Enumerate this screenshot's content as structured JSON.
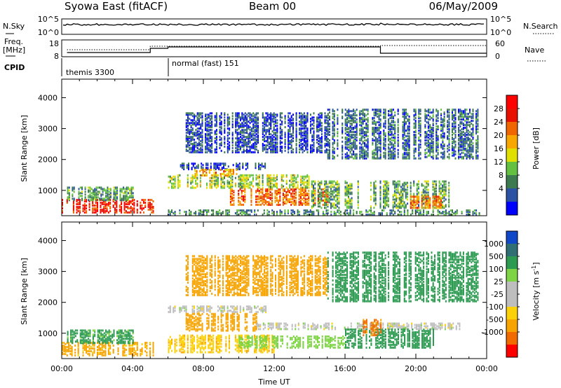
{
  "header": {
    "station": "Syowa East (fitACF)",
    "beam": "Beam 00",
    "date": "06/May/2009"
  },
  "noise_panel": {
    "left_label": "N.Sky",
    "right_label": "N.Search",
    "tick_top": "10^5",
    "tick_bottom": "10^0"
  },
  "freq_panel": {
    "left_label_1": "Freq.",
    "left_label_2": "[MHz]",
    "left_tick_top": "18",
    "left_tick_bottom": "8",
    "right_label": "Nave",
    "right_tick_top": "60",
    "right_tick_bottom": "0"
  },
  "cpid_panel": {
    "label": "CPID",
    "modes": [
      {
        "name": "themis 3300",
        "start_hour": 0,
        "end_hour": 6
      },
      {
        "name": "normal (fast) 151",
        "start_hour": 6,
        "end_hour": 24
      }
    ]
  },
  "colors": {
    "power_scale": [
      "#0000ff",
      "#2c53a3",
      "#3d7a50",
      "#63c040",
      "#e0e000",
      "#f7a700",
      "#f06600",
      "#e81000",
      "#ff0000"
    ],
    "velocity_scale": [
      "#ff0000",
      "#f26b00",
      "#f7a400",
      "#fbd20a",
      "#bebebe",
      "#bebebe",
      "#7ed444",
      "#2c9a50",
      "#306f74",
      "#1048c8"
    ]
  },
  "chart_data": [
    {
      "type": "heatmap",
      "title": "Power",
      "xlabel": "",
      "ylabel": "Slant Range [km]",
      "xlim_hours": [
        0,
        24
      ],
      "ylim": [
        180,
        4600
      ],
      "x_ticks": [
        "00:00",
        "04:00",
        "08:00",
        "12:00",
        "16:00",
        "20:00",
        "00:00"
      ],
      "y_ticks": [
        "1000",
        "2000",
        "3000",
        "4000"
      ],
      "colorbar": {
        "label": "Power [dB]",
        "range": [
          0,
          32
        ],
        "ticks": [
          "28",
          "24",
          "20",
          "16",
          "12",
          "8",
          "4"
        ]
      },
      "echo_regions": [
        {
          "t0": 0.0,
          "t1": 5.3,
          "r0": 250,
          "r1": 700,
          "value": 27
        },
        {
          "t0": 0.3,
          "t1": 4.0,
          "r0": 650,
          "r1": 1100,
          "value": 10
        },
        {
          "t0": 6.0,
          "t1": 14.0,
          "r0": 1050,
          "r1": 1500,
          "value": 14
        },
        {
          "t0": 6.5,
          "t1": 11.5,
          "r0": 1650,
          "r1": 1850,
          "value": 5
        },
        {
          "t0": 7.5,
          "t1": 10.0,
          "r0": 1450,
          "r1": 1650,
          "value": 20
        },
        {
          "t0": 9.5,
          "t1": 15.0,
          "r0": 500,
          "r1": 1000,
          "value": 23
        },
        {
          "t0": 14.0,
          "t1": 22.0,
          "r0": 400,
          "r1": 1300,
          "value": 11
        },
        {
          "t0": 19.5,
          "t1": 21.5,
          "r0": 400,
          "r1": 800,
          "value": 22
        },
        {
          "t0": 7.0,
          "t1": 15.0,
          "r0": 2200,
          "r1": 3500,
          "value": 5
        },
        {
          "t0": 15.0,
          "t1": 23.5,
          "r0": 2000,
          "r1": 3600,
          "value": 7
        },
        {
          "t0": 6.0,
          "t1": 24.0,
          "r0": 180,
          "r1": 350,
          "value": 9
        }
      ]
    },
    {
      "type": "heatmap",
      "title": "Velocity",
      "xlabel": "Time UT",
      "ylabel": "Slant Range [km]",
      "xlim_hours": [
        0,
        24
      ],
      "ylim": [
        180,
        4600
      ],
      "x_ticks": [
        "00:00",
        "04:00",
        "08:00",
        "12:00",
        "16:00",
        "20:00",
        "00:00"
      ],
      "y_ticks": [
        "1000",
        "2000",
        "3000",
        "4000"
      ],
      "colorbar": {
        "label": "Velocity [m s",
        "label_superscript": "-1",
        "label_close": "]",
        "range": [
          -1000,
          1000
        ],
        "ticks": [
          "1000",
          "500",
          "100",
          "25",
          "-25",
          "-100",
          "-500",
          "-1000"
        ]
      },
      "echo_regions": [
        {
          "t0": 0.0,
          "t1": 5.3,
          "r0": 250,
          "r1": 700,
          "value": -150
        },
        {
          "t0": 0.3,
          "t1": 4.0,
          "r0": 650,
          "r1": 1100,
          "value": 150
        },
        {
          "t0": 6.0,
          "t1": 11.5,
          "r0": 1650,
          "r1": 1850,
          "value": 0
        },
        {
          "t0": 7.0,
          "t1": 11.0,
          "r0": 1050,
          "r1": 1600,
          "value": -300
        },
        {
          "t0": 6.0,
          "t1": 12.0,
          "r0": 350,
          "r1": 900,
          "value": -80
        },
        {
          "t0": 10.0,
          "t1": 16.0,
          "r0": 500,
          "r1": 900,
          "value": 60
        },
        {
          "t0": 11.0,
          "t1": 22.5,
          "r0": 1100,
          "r1": 1300,
          "value": 0
        },
        {
          "t0": 16.0,
          "t1": 21.0,
          "r0": 500,
          "r1": 1100,
          "value": 200
        },
        {
          "t0": 17.0,
          "t1": 18.0,
          "r0": 900,
          "r1": 1400,
          "value": -700
        },
        {
          "t0": 7.0,
          "t1": 15.0,
          "r0": 2200,
          "r1": 3500,
          "value": -200
        },
        {
          "t0": 15.0,
          "t1": 23.5,
          "r0": 2000,
          "r1": 3600,
          "value": 300
        }
      ]
    }
  ]
}
